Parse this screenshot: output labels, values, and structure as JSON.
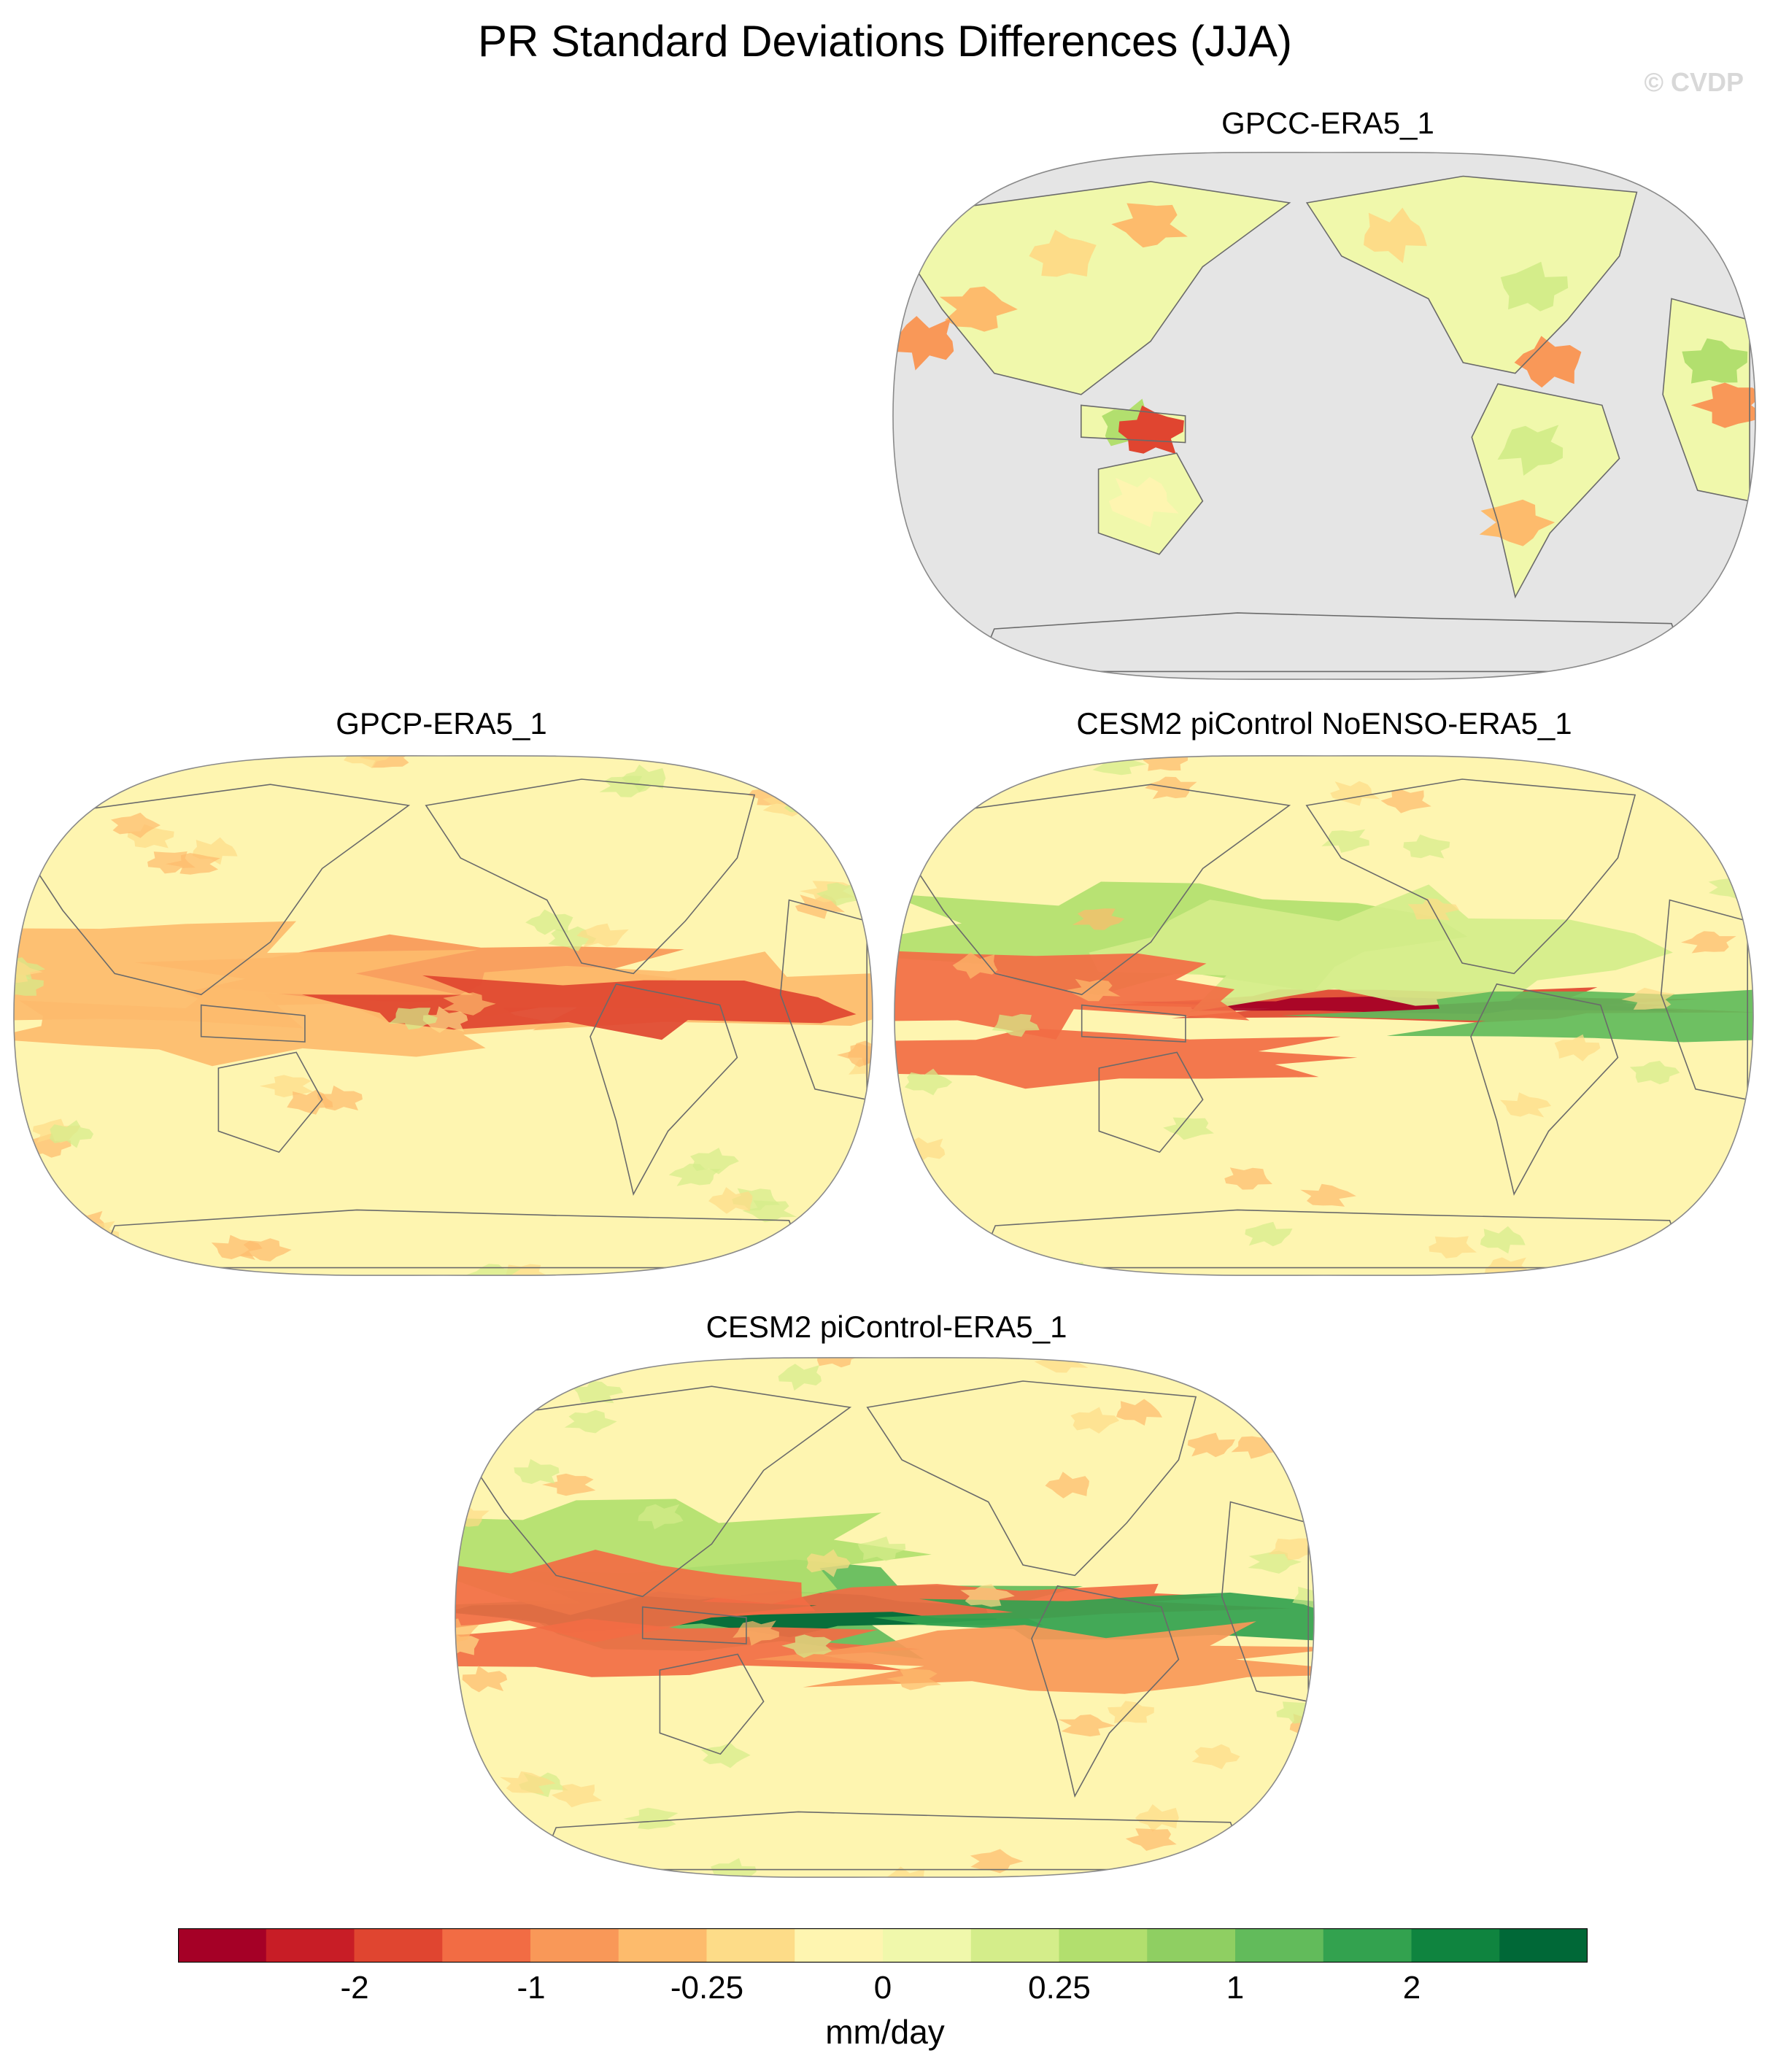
{
  "title": "PR Standard Deviations Differences (JJA)",
  "watermark": "© CVDP",
  "panels": [
    {
      "id": "gpcc",
      "title": "GPCC-ERA5_1",
      "land_only": true
    },
    {
      "id": "gpcp",
      "title": "GPCP-ERA5_1",
      "land_only": false
    },
    {
      "id": "noenso",
      "title": "CESM2 piControl NoENSO-ERA5_1",
      "land_only": false
    },
    {
      "id": "picontrol",
      "title": "CESM2 piControl-ERA5_1",
      "land_only": false
    }
  ],
  "colorbar": {
    "colors": [
      "#a50026",
      "#c81d26",
      "#e04530",
      "#f26c44",
      "#f99858",
      "#fdbb6c",
      "#fddc88",
      "#fef5b0",
      "#f0f8ab",
      "#d4ed8a",
      "#b2df6e",
      "#8fcf62",
      "#62bb5b",
      "#33a24f",
      "#0f843f",
      "#006837"
    ],
    "tick_labels": [
      "-2",
      "-1",
      "-0.25",
      "0",
      "0.25",
      "1",
      "2"
    ],
    "unit": "mm/day"
  },
  "colors": {
    "missing": "#e5e5e5",
    "coast": "#6a6a6a"
  }
}
